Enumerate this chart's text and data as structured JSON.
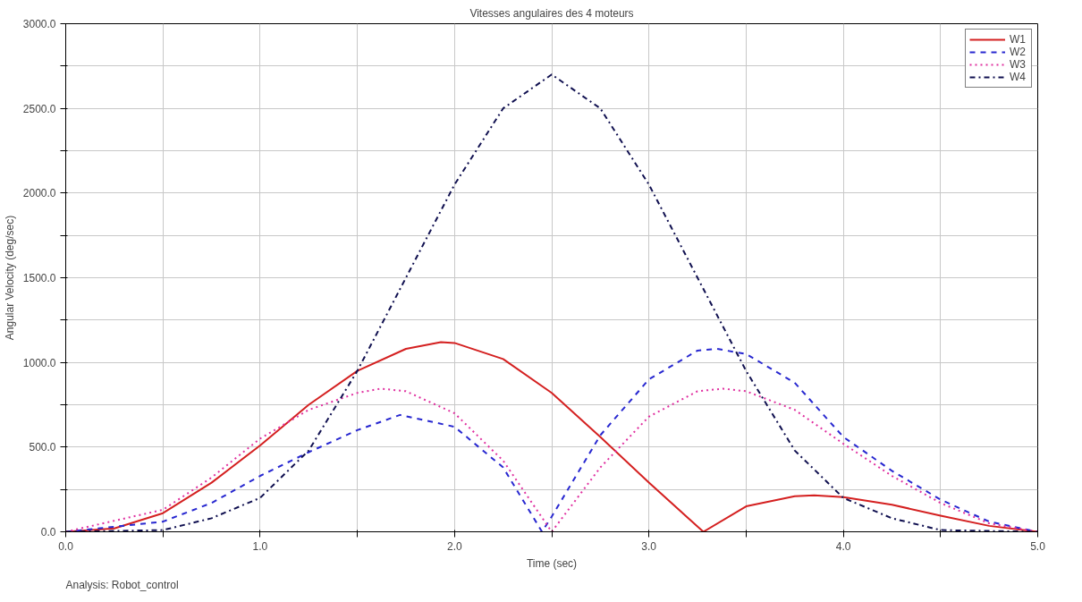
{
  "chart_data": {
    "type": "line",
    "title": "Vitesses angulaires des 4 moteurs",
    "xlabel": "Time (sec)",
    "ylabel": "Angular Velocity (deg/sec)",
    "annotations": [
      "Analysis:  Robot_control"
    ],
    "xlim": [
      0,
      5
    ],
    "ylim": [
      0,
      3000
    ],
    "xticks": [
      {
        "value": 0,
        "label": "0.0"
      },
      {
        "value": 0.5,
        "label": null
      },
      {
        "value": 1,
        "label": "1.0"
      },
      {
        "value": 1.5,
        "label": null
      },
      {
        "value": 2,
        "label": "2.0"
      },
      {
        "value": 2.5,
        "label": null
      },
      {
        "value": 3,
        "label": "3.0"
      },
      {
        "value": 3.5,
        "label": null
      },
      {
        "value": 4,
        "label": "4.0"
      },
      {
        "value": 4.5,
        "label": null
      },
      {
        "value": 5,
        "label": "5.0"
      }
    ],
    "yticks": [
      {
        "value": 0,
        "label": "0.0"
      },
      {
        "value": 250,
        "label": null
      },
      {
        "value": 500,
        "label": "500.0"
      },
      {
        "value": 750,
        "label": null
      },
      {
        "value": 1000,
        "label": "1000.0"
      },
      {
        "value": 1250,
        "label": null
      },
      {
        "value": 1500,
        "label": "1500.0"
      },
      {
        "value": 1750,
        "label": null
      },
      {
        "value": 2000,
        "label": "2000.0"
      },
      {
        "value": 2250,
        "label": null
      },
      {
        "value": 2500,
        "label": "2500.0"
      },
      {
        "value": 2750,
        "label": null
      },
      {
        "value": 3000,
        "label": "3000.0"
      }
    ],
    "grid": true,
    "legend": "top right",
    "marker": "none",
    "series": [
      {
        "name": "W1",
        "color": "#d42020",
        "line_style": "solid",
        "x": [
          0,
          0.25,
          0.5,
          0.75,
          1.0,
          1.25,
          1.5,
          1.75,
          1.93,
          2.0,
          2.25,
          2.5,
          2.75,
          3.0,
          3.28,
          3.5,
          3.75,
          3.85,
          4.0,
          4.25,
          4.5,
          4.75,
          5.0
        ],
        "values": [
          0,
          20,
          110,
          290,
          510,
          750,
          950,
          1080,
          1120,
          1115,
          1020,
          820,
          560,
          290,
          0,
          150,
          210,
          215,
          205,
          160,
          95,
          35,
          0
        ]
      },
      {
        "name": "W2",
        "color": "#2828d0",
        "line_style": "dashed",
        "x": [
          0,
          0.5,
          0.75,
          1.0,
          1.25,
          1.5,
          1.72,
          2.0,
          2.25,
          2.45,
          2.5,
          2.75,
          3.0,
          3.25,
          3.35,
          3.5,
          3.75,
          4.0,
          4.25,
          4.5,
          4.75,
          5.0
        ],
        "values": [
          0,
          60,
          170,
          330,
          470,
          600,
          690,
          620,
          380,
          0,
          90,
          570,
          900,
          1070,
          1080,
          1050,
          880,
          560,
          360,
          190,
          60,
          0
        ]
      },
      {
        "name": "W3",
        "color": "#e030a0",
        "line_style": "dotted",
        "x": [
          0,
          0.5,
          0.75,
          1.0,
          1.25,
          1.5,
          1.62,
          1.75,
          2.0,
          2.25,
          2.5,
          2.75,
          3.0,
          3.25,
          3.38,
          3.5,
          3.75,
          4.0,
          4.25,
          4.5,
          4.75,
          5.0
        ],
        "values": [
          0,
          130,
          320,
          550,
          720,
          820,
          845,
          830,
          700,
          420,
          0,
          380,
          680,
          830,
          845,
          830,
          720,
          520,
          330,
          170,
          50,
          0
        ]
      },
      {
        "name": "W4",
        "color": "#101050",
        "line_style": "dashdot",
        "x": [
          0,
          0.5,
          0.75,
          1.0,
          1.25,
          1.5,
          1.75,
          2.0,
          2.25,
          2.5,
          2.75,
          3.0,
          3.25,
          3.5,
          3.75,
          4.0,
          4.25,
          4.5,
          5.0
        ],
        "values": [
          0,
          10,
          80,
          200,
          480,
          950,
          1500,
          2050,
          2500,
          2700,
          2500,
          2050,
          1500,
          950,
          480,
          200,
          80,
          10,
          0
        ]
      }
    ]
  }
}
